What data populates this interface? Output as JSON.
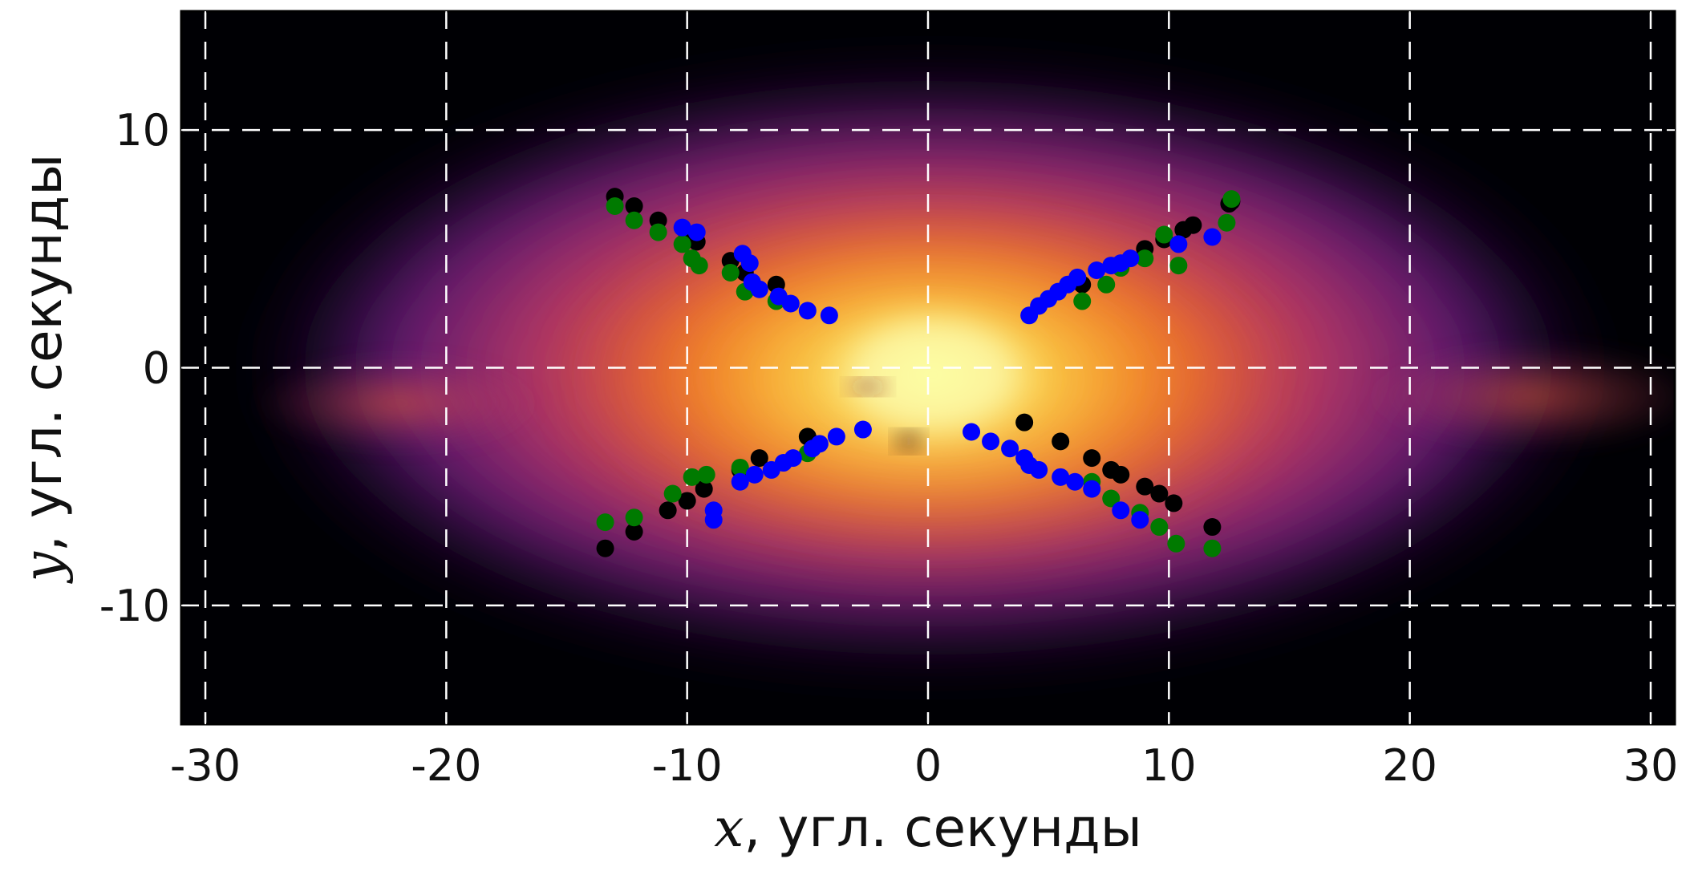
{
  "chart_data": {
    "type": "scatter",
    "title": "",
    "xlabel_var": "x",
    "xlabel_rest": ", угл. секунды",
    "ylabel_var": "y",
    "ylabel_rest": ", угл. секунды",
    "xlim": [
      -31,
      31
    ],
    "ylim": [
      -15,
      15
    ],
    "x_ticks": [
      -30,
      -20,
      -10,
      0,
      10,
      20,
      30
    ],
    "y_ticks": [
      -10,
      0,
      10
    ],
    "x_tick_labels": [
      "-30",
      "-20",
      "-10",
      "0",
      "10",
      "20",
      "30"
    ],
    "y_tick_labels": [
      "-10",
      "0",
      "10"
    ],
    "grid": true,
    "grid_style": "dashed white",
    "background": "inferno/magma colormap brightness image, bright core at center, elongated along x",
    "series": [
      {
        "color": "#000000",
        "points": [
          [
            -13.0,
            7.2
          ],
          [
            -12.2,
            6.8
          ],
          [
            -11.2,
            6.2
          ],
          [
            -10.0,
            5.6
          ],
          [
            -9.6,
            5.3
          ],
          [
            -8.2,
            4.5
          ],
          [
            -7.6,
            4.0
          ],
          [
            -6.3,
            3.5
          ],
          [
            -13.4,
            -7.6
          ],
          [
            -12.2,
            -6.9
          ],
          [
            -10.8,
            -6.0
          ],
          [
            -10.0,
            -5.6
          ],
          [
            -9.3,
            -5.1
          ],
          [
            -7.8,
            -4.3
          ],
          [
            -7.0,
            -3.8
          ],
          [
            -5.0,
            -2.9
          ],
          [
            4.0,
            -2.3
          ],
          [
            5.5,
            -3.1
          ],
          [
            6.8,
            -3.8
          ],
          [
            7.6,
            -4.3
          ],
          [
            8.0,
            -4.5
          ],
          [
            9.0,
            -5.0
          ],
          [
            9.6,
            -5.3
          ],
          [
            10.2,
            -5.7
          ],
          [
            11.8,
            -6.7
          ],
          [
            12.6,
            7.0
          ],
          [
            12.5,
            6.9
          ],
          [
            11.0,
            6.0
          ],
          [
            10.6,
            5.8
          ],
          [
            9.8,
            5.4
          ],
          [
            9.0,
            5.0
          ],
          [
            6.4,
            3.5
          ]
        ]
      },
      {
        "color": "#007a00",
        "points": [
          [
            -13.0,
            6.8
          ],
          [
            -12.2,
            6.2
          ],
          [
            -11.2,
            5.7
          ],
          [
            -10.2,
            5.2
          ],
          [
            -9.8,
            4.6
          ],
          [
            -9.5,
            4.3
          ],
          [
            -8.2,
            4.0
          ],
          [
            -7.6,
            3.2
          ],
          [
            -6.3,
            2.8
          ],
          [
            -13.4,
            -6.5
          ],
          [
            -12.2,
            -6.3
          ],
          [
            -10.6,
            -5.3
          ],
          [
            -9.8,
            -4.6
          ],
          [
            -9.2,
            -4.5
          ],
          [
            -7.8,
            -4.2
          ],
          [
            -5.0,
            -3.6
          ],
          [
            6.8,
            -4.8
          ],
          [
            7.6,
            -5.5
          ],
          [
            8.8,
            -6.1
          ],
          [
            9.6,
            -6.7
          ],
          [
            10.3,
            -7.4
          ],
          [
            11.8,
            -7.6
          ],
          [
            12.6,
            7.1
          ],
          [
            12.4,
            6.1
          ],
          [
            10.4,
            4.3
          ],
          [
            9.8,
            5.6
          ],
          [
            9.0,
            4.6
          ],
          [
            8.0,
            4.2
          ],
          [
            7.4,
            3.5
          ],
          [
            6.4,
            2.8
          ]
        ]
      },
      {
        "color": "#0000ff",
        "points": [
          [
            -10.2,
            5.9
          ],
          [
            -9.6,
            5.7
          ],
          [
            -7.7,
            4.8
          ],
          [
            -7.4,
            4.4
          ],
          [
            -7.3,
            3.6
          ],
          [
            -7.0,
            3.3
          ],
          [
            -6.2,
            3.0
          ],
          [
            -5.7,
            2.7
          ],
          [
            -5.0,
            2.4
          ],
          [
            -4.1,
            2.2
          ],
          [
            -8.9,
            -6.0
          ],
          [
            -8.9,
            -6.4
          ],
          [
            -7.8,
            -4.8
          ],
          [
            -7.2,
            -4.5
          ],
          [
            -6.5,
            -4.3
          ],
          [
            -6.0,
            -4.0
          ],
          [
            -5.6,
            -3.8
          ],
          [
            -4.8,
            -3.4
          ],
          [
            -4.5,
            -3.2
          ],
          [
            -3.8,
            -2.9
          ],
          [
            -2.7,
            -2.6
          ],
          [
            1.8,
            -2.7
          ],
          [
            2.6,
            -3.1
          ],
          [
            3.4,
            -3.4
          ],
          [
            4.0,
            -3.8
          ],
          [
            4.2,
            -4.1
          ],
          [
            4.6,
            -4.3
          ],
          [
            5.5,
            -4.6
          ],
          [
            6.1,
            -4.8
          ],
          [
            6.8,
            -5.1
          ],
          [
            8.0,
            -6.0
          ],
          [
            8.8,
            -6.4
          ],
          [
            4.2,
            2.2
          ],
          [
            4.6,
            2.6
          ],
          [
            5.0,
            2.9
          ],
          [
            5.4,
            3.2
          ],
          [
            5.8,
            3.5
          ],
          [
            6.2,
            3.8
          ],
          [
            7.0,
            4.1
          ],
          [
            7.6,
            4.3
          ],
          [
            8.0,
            4.4
          ],
          [
            8.4,
            4.6
          ],
          [
            10.4,
            5.2
          ],
          [
            11.8,
            5.5
          ]
        ]
      }
    ],
    "colors": {
      "grid": "#ffffff",
      "axes": "#000000",
      "frame_bg": "#000004"
    }
  }
}
